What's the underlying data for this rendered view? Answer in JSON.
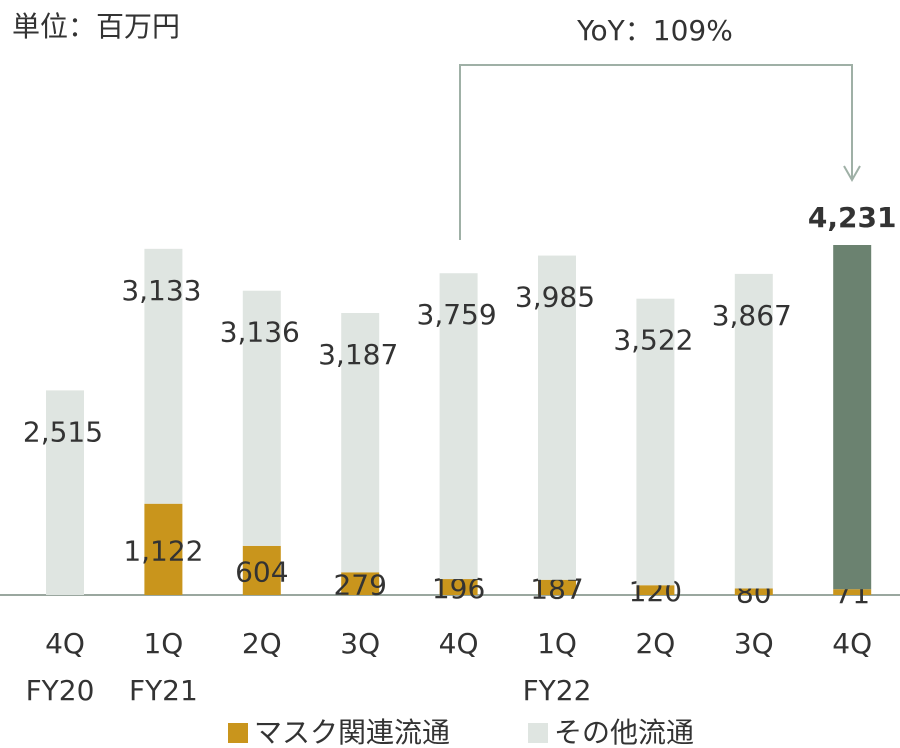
{
  "chart_data": {
    "type": "stacked-bar",
    "unit_label": "単位：百万円",
    "annotation": "YoY：109%",
    "categories": [
      "4Q",
      "1Q",
      "2Q",
      "3Q",
      "4Q",
      "1Q",
      "2Q",
      "3Q",
      "4Q"
    ],
    "group_labels": [
      "FY20",
      "FY21",
      null,
      null,
      null,
      "FY22",
      null,
      null,
      null
    ],
    "series": [
      {
        "name": "マスク関連流通",
        "color": "#c9951c",
        "values": [
          null,
          1122,
          604,
          279,
          196,
          187,
          120,
          80,
          71
        ],
        "value_labels": [
          null,
          "1,122",
          "604",
          "279",
          "196",
          "187",
          "120",
          "80",
          "71"
        ]
      },
      {
        "name": "その他流通",
        "color": "#dfe5e1",
        "colors": [
          "#dfe5e1",
          "#dfe5e1",
          "#dfe5e1",
          "#dfe5e1",
          "#dfe5e1",
          "#dfe5e1",
          "#dfe5e1",
          "#dfe5e1",
          "#6b8270"
        ],
        "values": [
          2515,
          3133,
          3136,
          3187,
          3759,
          3985,
          3522,
          3867,
          4231
        ],
        "value_labels": [
          "2,515",
          "3,133",
          "3,136",
          "3,187",
          "3,759",
          "3,985",
          "3,522",
          "3,867",
          "4,231"
        ]
      }
    ]
  }
}
